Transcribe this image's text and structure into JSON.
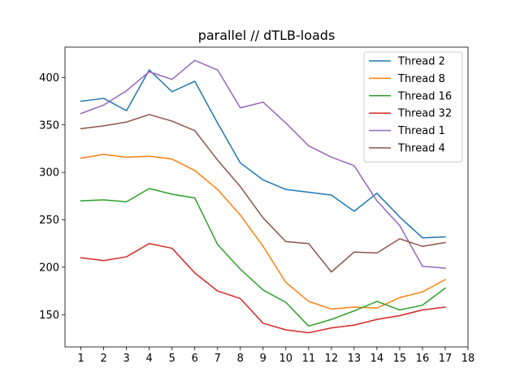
{
  "chart_data": {
    "type": "line",
    "title": "parallel // dTLB-loads",
    "xlabel": "",
    "ylabel": "",
    "x": [
      1,
      2,
      3,
      4,
      5,
      6,
      7,
      8,
      9,
      10,
      11,
      12,
      13,
      14,
      15,
      16,
      17
    ],
    "xticks": [
      "1",
      "2",
      "3",
      "4",
      "5",
      "6",
      "7",
      "8",
      "9",
      "10",
      "11",
      "12",
      "13",
      "14",
      "15",
      "16",
      "17",
      "18"
    ],
    "xlim": [
      0.3,
      18
    ],
    "yticks": [
      "150",
      "200",
      "250",
      "300",
      "350",
      "400"
    ],
    "ylim": [
      116,
      432
    ],
    "grid": false,
    "legend_position": "top-right",
    "series": [
      {
        "name": "Thread 2",
        "color": "#1f77b4",
        "values": [
          375,
          378,
          365,
          408,
          385,
          396,
          352,
          310,
          292,
          282,
          279,
          276,
          259,
          278,
          253,
          231,
          232
        ]
      },
      {
        "name": "Thread 8",
        "color": "#ff7f0e",
        "values": [
          315,
          319,
          316,
          317,
          314,
          302,
          282,
          255,
          222,
          184,
          164,
          156,
          158,
          157,
          168,
          174,
          187
        ]
      },
      {
        "name": "Thread 16",
        "color": "#2ca02c",
        "values": [
          270,
          271,
          269,
          283,
          277,
          273,
          224,
          198,
          176,
          163,
          138,
          145,
          154,
          164,
          155,
          160,
          178
        ]
      },
      {
        "name": "Thread 32",
        "color": "#d62728",
        "values": [
          210,
          207,
          211,
          225,
          220,
          194,
          175,
          167,
          141,
          134,
          131,
          136,
          139,
          145,
          149,
          155,
          158
        ]
      },
      {
        "name": "Thread 1",
        "color": "#9467bd",
        "values": [
          362,
          371,
          386,
          406,
          398,
          418,
          408,
          368,
          374,
          352,
          328,
          316,
          307,
          270,
          244,
          201,
          199
        ]
      },
      {
        "name": "Thread 4",
        "color": "#8c564b",
        "values": [
          346,
          349,
          353,
          361,
          354,
          344,
          313,
          285,
          252,
          227,
          225,
          195,
          216,
          215,
          230,
          222,
          226
        ]
      }
    ]
  }
}
